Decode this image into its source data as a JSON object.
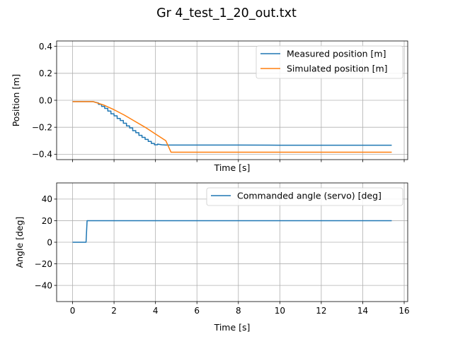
{
  "chart_data": {
    "title": "Gr 4_test_1_20_out.txt",
    "charts": [
      {
        "type": "line",
        "xlabel": "Time [s]",
        "ylabel": "Position [m]",
        "xlim": [
          -0.77,
          16.17
        ],
        "ylim": [
          -0.44,
          0.44
        ],
        "xticks": [
          0,
          2,
          4,
          6,
          8,
          10,
          12,
          14,
          16
        ],
        "yticks": [
          -0.4,
          -0.2,
          0.0,
          0.2,
          0.4
        ],
        "yticklabels": [
          "−0.4",
          "−0.2",
          "0.0",
          "0.2",
          "0.4"
        ],
        "show_xticklabels": false,
        "grid": true,
        "legend": "top-right",
        "series": [
          {
            "name": "Measured position [m]",
            "color": "#1f77b4",
            "x": [
              0,
              1.0,
              1.1,
              1.25,
              1.25,
              1.4,
              1.4,
              1.55,
              1.55,
              1.7,
              1.7,
              1.85,
              1.85,
              2.0,
              2.0,
              2.15,
              2.15,
              2.3,
              2.3,
              2.45,
              2.45,
              2.6,
              2.6,
              2.75,
              2.75,
              2.9,
              2.9,
              3.05,
              3.05,
              3.2,
              3.2,
              3.35,
              3.35,
              3.5,
              3.5,
              3.65,
              3.65,
              3.8,
              3.8,
              3.95,
              3.95,
              4.1,
              4.1,
              4.3,
              4.5,
              6.0,
              8.0,
              10.0,
              12.0,
              14.0,
              15.4
            ],
            "y": [
              -0.01,
              -0.01,
              -0.015,
              -0.02,
              -0.03,
              -0.03,
              -0.045,
              -0.045,
              -0.06,
              -0.06,
              -0.08,
              -0.08,
              -0.1,
              -0.1,
              -0.115,
              -0.115,
              -0.135,
              -0.135,
              -0.15,
              -0.15,
              -0.17,
              -0.17,
              -0.19,
              -0.19,
              -0.205,
              -0.205,
              -0.225,
              -0.225,
              -0.24,
              -0.24,
              -0.26,
              -0.26,
              -0.275,
              -0.275,
              -0.29,
              -0.29,
              -0.305,
              -0.305,
              -0.32,
              -0.32,
              -0.33,
              -0.33,
              -0.325,
              -0.33,
              -0.332,
              -0.332,
              -0.332,
              -0.333,
              -0.333,
              -0.333,
              -0.333
            ]
          },
          {
            "name": "Simulated position [m]",
            "color": "#ff7f0e",
            "x": [
              0,
              1.0,
              1.5,
              2.0,
              2.5,
              3.0,
              3.5,
              4.0,
              4.5,
              4.75,
              6.0,
              8.0,
              10.0,
              12.0,
              14.0,
              15.4
            ],
            "y": [
              -0.01,
              -0.01,
              -0.035,
              -0.07,
              -0.11,
              -0.155,
              -0.2,
              -0.25,
              -0.3,
              -0.385,
              -0.385,
              -0.385,
              -0.385,
              -0.385,
              -0.385,
              -0.385
            ]
          }
        ]
      },
      {
        "type": "line",
        "xlabel": "Time [s]",
        "ylabel": "Angle [deg]",
        "xlim": [
          -0.77,
          16.17
        ],
        "ylim": [
          -55,
          55
        ],
        "xticks": [
          0,
          2,
          4,
          6,
          8,
          10,
          12,
          14,
          16
        ],
        "yticks": [
          -40,
          -20,
          0,
          20,
          40
        ],
        "yticklabels": [
          "−40",
          "−20",
          "0",
          "20",
          "40"
        ],
        "show_xticklabels": true,
        "grid": true,
        "legend": "top-right",
        "series": [
          {
            "name": "Commanded angle (servo) [deg]",
            "color": "#1f77b4",
            "x": [
              0,
              0.65,
              0.7,
              15.4
            ],
            "y": [
              0,
              0,
              20,
              20
            ]
          }
        ]
      }
    ]
  }
}
